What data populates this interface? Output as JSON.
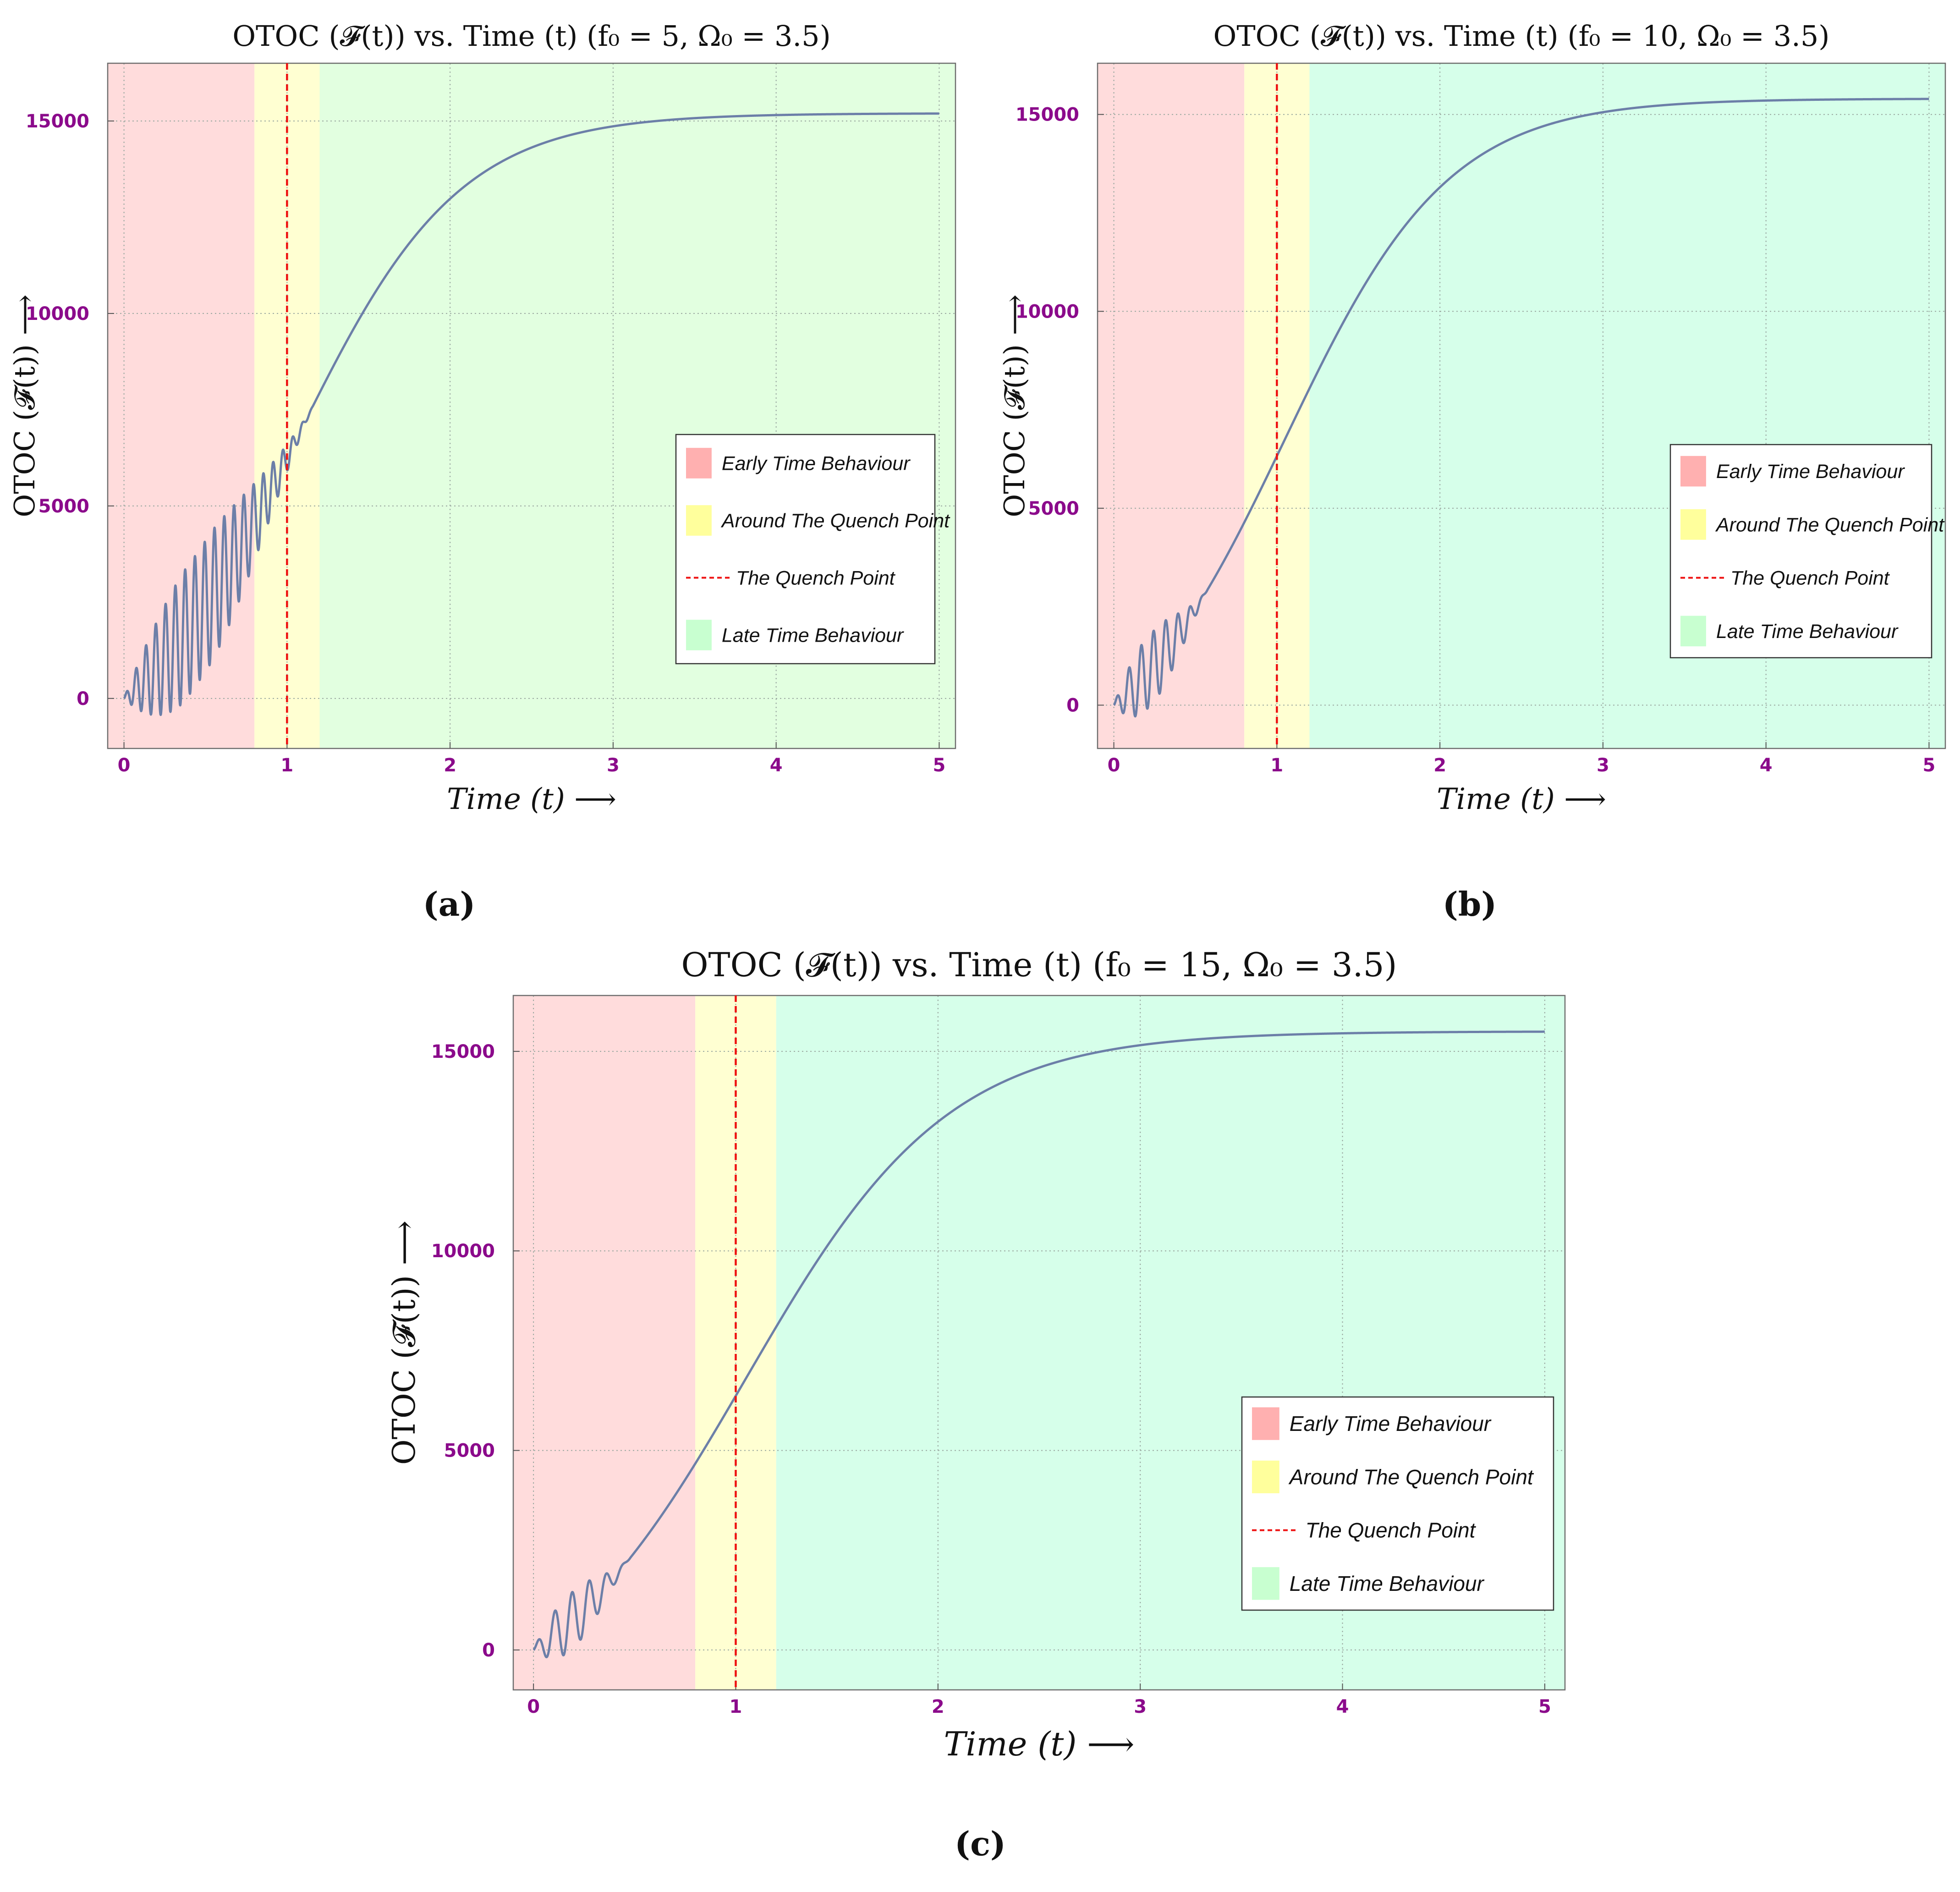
{
  "figure": {
    "captions": [
      "(a)",
      "(b)",
      "(c)"
    ]
  },
  "colors": {
    "early_region": "#ffdcdc",
    "quench_region": "#ffffd2",
    "late_region_a": "#e2ffe0",
    "late_region_bc": "#d6ffea",
    "curve": "#6c7fa8",
    "quench_line": "#ee1111",
    "tick_label": "#8b0a8b",
    "legend_swatch_early": "#ffb0b0",
    "legend_swatch_quench": "#ffff9c",
    "legend_swatch_late": "#c8ffd0"
  },
  "chart_data": [
    {
      "type": "line",
      "title": "OTOC (𝓕(t)) vs. Time (t) (f₀ = 5, Ω₀ = 3.5)",
      "xlabel": "Time (t)  ⟶",
      "ylabel": "OTOC (𝓕(t))  ⟶",
      "f0": 5,
      "omega0": 3.5,
      "xlim": [
        -0.1,
        5.1
      ],
      "ylim": [
        -1300,
        16500
      ],
      "xticks": [
        0,
        1,
        2,
        3,
        4,
        5
      ],
      "yticks": [
        0,
        5000,
        10000,
        15000
      ],
      "xtick_labels": [
        "0",
        "1",
        "2",
        "3",
        "4",
        "5"
      ],
      "ytick_labels": [
        "0",
        "5000",
        "10000",
        "15000"
      ],
      "regions": [
        {
          "name": "Early Time Behaviour",
          "x_range": [
            -0.1,
            0.8
          ]
        },
        {
          "name": "Around The Quench Point",
          "x_range": [
            0.8,
            1.2
          ]
        },
        {
          "name": "Late Time Behaviour",
          "x_range": [
            1.2,
            5.1
          ]
        }
      ],
      "quench_point": 1,
      "curve": {
        "t_start": 0,
        "t_end": 5,
        "plateau": 15200,
        "rate": 2.0,
        "t_mid": 1.05,
        "osc_period": 0.06,
        "osc_amp_max": 1700,
        "osc_decay_t": 1.45
      },
      "legend": {
        "position": "center-right",
        "entries": [
          "Early Time Behaviour",
          "Around The Quench Point",
          "The Quench Point",
          "Late Time Behaviour"
        ]
      }
    },
    {
      "type": "line",
      "title": "OTOC (𝓕(t)) vs. Time (t) (f₀ = 10, Ω₀ = 3.5)",
      "xlabel": "Time (t)  ⟶",
      "ylabel": "OTOC (𝓕(t))  ⟶",
      "f0": 10,
      "omega0": 3.5,
      "xlim": [
        -0.1,
        5.1
      ],
      "ylim": [
        -1100,
        16300
      ],
      "xticks": [
        0,
        1,
        2,
        3,
        4,
        5
      ],
      "yticks": [
        0,
        5000,
        10000,
        15000
      ],
      "xtick_labels": [
        "0",
        "1",
        "2",
        "3",
        "4",
        "5"
      ],
      "ytick_labels": [
        "0",
        "5000",
        "10000",
        "15000"
      ],
      "regions": [
        {
          "name": "Early Time Behaviour",
          "x_range": [
            -0.1,
            0.8
          ]
        },
        {
          "name": "Around The Quench Point",
          "x_range": [
            0.8,
            1.2
          ]
        },
        {
          "name": "Late Time Behaviour",
          "x_range": [
            1.2,
            5.1
          ]
        }
      ],
      "quench_point": 1,
      "curve": {
        "t_start": 0,
        "t_end": 5,
        "plateau": 15400,
        "rate": 2.0,
        "t_mid": 1.05,
        "osc_period": 0.075,
        "osc_amp_max": 900,
        "osc_decay_t": 0.72
      },
      "legend": {
        "position": "center-right",
        "entries": [
          "Early Time Behaviour",
          "Around The Quench Point",
          "The Quench Point",
          "Late Time Behaviour"
        ]
      }
    },
    {
      "type": "line",
      "title": "OTOC (𝓕(t)) vs. Time (t) (f₀ = 15, Ω₀ = 3.5)",
      "xlabel": "Time (t)  ⟶",
      "ylabel": "OTOC (𝓕(t))  ⟶",
      "f0": 15,
      "omega0": 3.5,
      "xlim": [
        -0.1,
        5.1
      ],
      "ylim": [
        -1000,
        16400
      ],
      "xticks": [
        0,
        1,
        2,
        3,
        4,
        5
      ],
      "yticks": [
        0,
        5000,
        10000,
        15000
      ],
      "xtick_labels": [
        "0",
        "1",
        "2",
        "3",
        "4",
        "5"
      ],
      "ytick_labels": [
        "0",
        "5000",
        "10000",
        "15000"
      ],
      "regions": [
        {
          "name": "Early Time Behaviour",
          "x_range": [
            -0.1,
            0.8
          ]
        },
        {
          "name": "Around The Quench Point",
          "x_range": [
            0.8,
            1.2
          ]
        },
        {
          "name": "Late Time Behaviour",
          "x_range": [
            1.2,
            5.1
          ]
        }
      ],
      "quench_point": 1,
      "curve": {
        "t_start": 0,
        "t_end": 5,
        "plateau": 15500,
        "rate": 2.0,
        "t_mid": 1.05,
        "osc_period": 0.085,
        "osc_amp_max": 700,
        "osc_decay_t": 0.6
      },
      "legend": {
        "position": "center-right",
        "entries": [
          "Early Time Behaviour",
          "Around The Quench Point",
          "The Quench Point",
          "Late Time Behaviour"
        ]
      }
    }
  ]
}
